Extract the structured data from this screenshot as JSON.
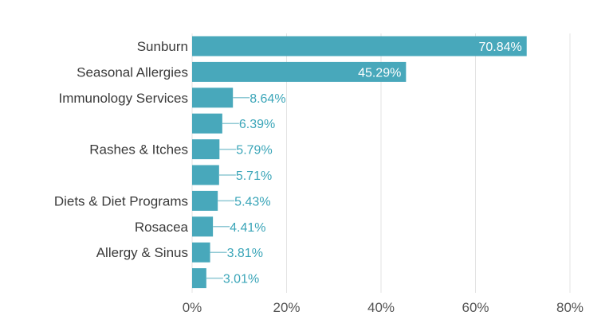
{
  "chart_data": {
    "type": "bar",
    "orientation": "horizontal",
    "categories": [
      "Sunburn",
      "Seasonal Allergies",
      "Immunology Services",
      "",
      "Rashes & Itches",
      "",
      "Diets & Diet Programs",
      "Rosacea",
      "Allergy & Sinus",
      ""
    ],
    "values": [
      70.84,
      45.29,
      8.64,
      6.39,
      5.79,
      5.71,
      5.43,
      4.41,
      3.81,
      3.01
    ],
    "value_labels": [
      "70.84%",
      "45.29%",
      "8.64%",
      "6.39%",
      "5.79%",
      "5.71%",
      "5.43%",
      "4.41%",
      "3.81%",
      "3.01%"
    ],
    "xlim": [
      0,
      80
    ],
    "xticks": [
      0,
      20,
      40,
      60,
      80
    ],
    "xtick_labels": [
      "0%",
      "20%",
      "40%",
      "60%",
      "80%"
    ],
    "grid": true,
    "title": "",
    "xlabel": "",
    "ylabel": "",
    "colors": {
      "bar": "#48a8bb",
      "label_outside": "#3aa5b8",
      "label_inside": "#ffffff",
      "grid": "#e3e3e3"
    }
  }
}
